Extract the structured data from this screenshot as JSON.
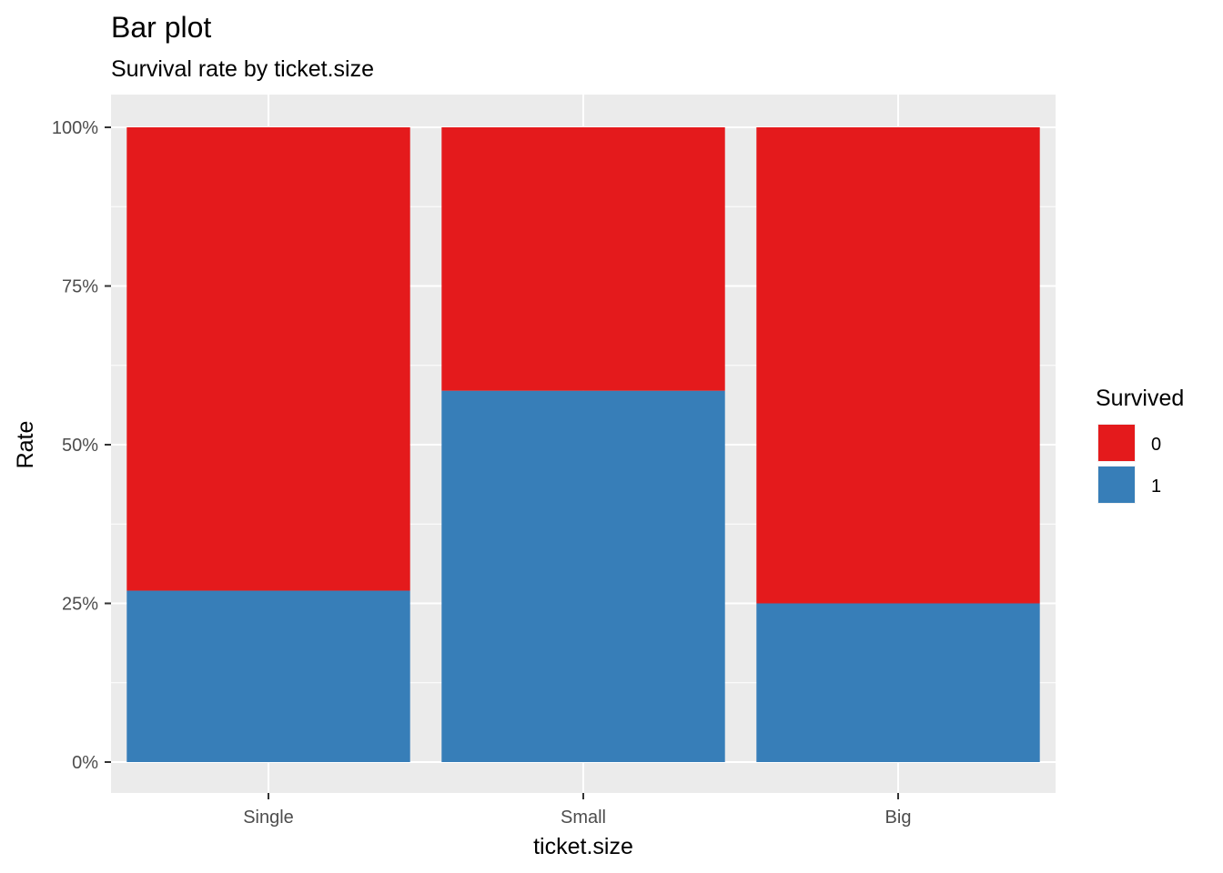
{
  "chart_data": {
    "type": "bar",
    "stacked": true,
    "title": "Bar plot",
    "subtitle": "Survival rate by ticket.size",
    "xlabel": "ticket.size",
    "ylabel": "Rate",
    "categories": [
      "Single",
      "Small",
      "Big"
    ],
    "series": [
      {
        "name": "1",
        "color": "#377EB8",
        "values": [
          0.27,
          0.585,
          0.25
        ]
      },
      {
        "name": "0",
        "color": "#E41A1C",
        "values": [
          0.73,
          0.415,
          0.75
        ]
      }
    ],
    "ylim": [
      0,
      1
    ],
    "yticks": [
      0,
      0.25,
      0.5,
      0.75,
      1
    ],
    "ytick_labels": [
      "0%",
      "25%",
      "50%",
      "75%",
      "100%"
    ],
    "grid": true,
    "panel_background": "#EBEBEB",
    "legend": {
      "title": "Survived",
      "position": "right",
      "entries": [
        {
          "label": "0",
          "color": "#E41A1C"
        },
        {
          "label": "1",
          "color": "#377EB8"
        }
      ]
    }
  }
}
